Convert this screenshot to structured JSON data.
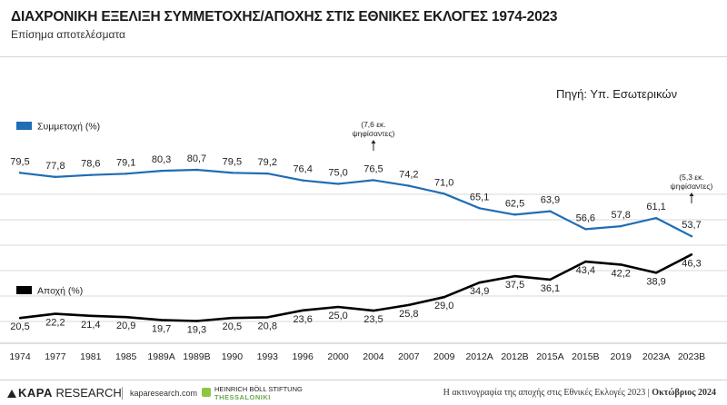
{
  "header": {
    "title": "ΔΙΑΧΡΟΝΙΚΗ ΕΞΕΛΙΞΗ ΣΥΜΜΕΤΟΧΗΣ/ΑΠΟΧΗΣ ΣΤΙΣ ΕΘΝΙΚΕΣ ΕΚΛΟΓΕΣ 1974-2023",
    "subtitle": "Επίσημα αποτελέσματα",
    "source": "Πηγή: Υπ. Εσωτερικών"
  },
  "footer": {
    "kapa_brand_bold": "KAPA",
    "kapa_brand_rest": "RESEARCH",
    "kapa_url": "kaparesearch.com",
    "hb_line1": "HEINRICH BÖLL STIFTUNG",
    "hb_line2": "THESSALONIKI",
    "note": "Η ακτινογραφία της αποχής στις Εθνικές Εκλογές 2023",
    "date": "Οκτώβριος 2024"
  },
  "colors": {
    "participation": "#1f6db4",
    "abstention": "#000000",
    "grid": "#d9d9d9"
  },
  "chart_data": {
    "type": "line",
    "categories": [
      "1974",
      "1977",
      "1981",
      "1985",
      "1989A",
      "1989B",
      "1990",
      "1993",
      "1996",
      "2000",
      "2004",
      "2007",
      "2009",
      "2012A",
      "2012B",
      "2015A",
      "2015B",
      "2019",
      "2023A",
      "2023B"
    ],
    "series": [
      {
        "name": "Συμμετοχή (%)",
        "color": "#1f6db4",
        "values": [
          79.5,
          77.8,
          78.6,
          79.1,
          80.3,
          80.7,
          79.5,
          79.2,
          76.4,
          75.0,
          76.5,
          74.2,
          71.0,
          65.1,
          62.5,
          63.9,
          56.6,
          57.8,
          61.1,
          53.7
        ],
        "labels": [
          "79,5",
          "77,8",
          "78,6",
          "79,1",
          "80,3",
          "80,7",
          "79,5",
          "79,2",
          "76,4",
          "75,0",
          "76,5",
          "74,2",
          "71,0",
          "65,1",
          "62,5",
          "63,9",
          "56,6",
          "57,8",
          "61,1",
          "53,7"
        ]
      },
      {
        "name": "Αποχή (%)",
        "color": "#000000",
        "values": [
          20.5,
          22.2,
          21.4,
          20.9,
          19.7,
          19.3,
          20.5,
          20.8,
          23.6,
          25.0,
          23.5,
          25.8,
          29.0,
          34.9,
          37.5,
          36.1,
          43.4,
          42.2,
          38.9,
          46.3
        ],
        "labels": [
          "20,5",
          "22,2",
          "21,4",
          "20,9",
          "19,7",
          "19,3",
          "20,5",
          "20,8",
          "23,6",
          "25,0",
          "23,5",
          "25,8",
          "29,0",
          "34,9",
          "37,5",
          "36,1",
          "43,4",
          "42,2",
          "38,9",
          "46,3"
        ]
      }
    ],
    "annotations": [
      {
        "category": "2004",
        "text_line1": "(7,6 εκ.",
        "text_line2": "ψηφίσαντες)"
      },
      {
        "category": "2023B",
        "text_line1": "(5,3 εκ.",
        "text_line2": "ψηφίσαντες)"
      }
    ],
    "xlabel": "",
    "ylabel": "",
    "grid": true,
    "legend_placement": "inline-left"
  }
}
